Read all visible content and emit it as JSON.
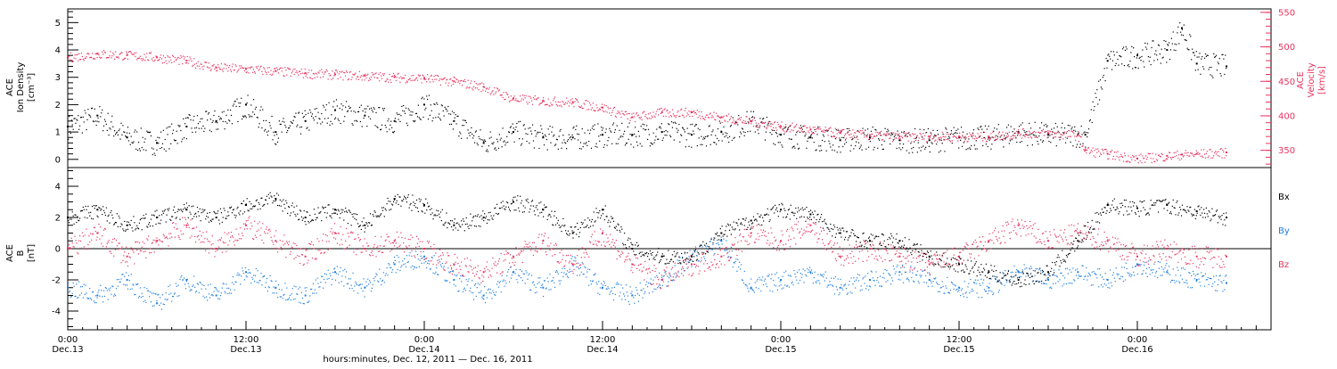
{
  "colors": {
    "black": "#000000",
    "red": "#e8335f",
    "blue": "#1f7fe0"
  },
  "x_axis": {
    "title": "hours:minutes, Dec. 12, 2011 — Dec. 16, 2011",
    "ticks": [
      {
        "time": "0:00",
        "date": "Dec.13"
      },
      {
        "time": "12:00",
        "date": "Dec.13"
      },
      {
        "time": "0:00",
        "date": "Dec.14"
      },
      {
        "time": "12:00",
        "date": "Dec.14"
      },
      {
        "time": "0:00",
        "date": "Dec.15"
      },
      {
        "time": "12:00",
        "date": "Dec.15"
      },
      {
        "time": "0:00",
        "date": "Dec.16"
      }
    ]
  },
  "chart_data": [
    {
      "type": "scatter",
      "panel": "top",
      "xlabel": "hours:minutes, Dec. 12, 2011 — Dec. 16, 2011",
      "xlim_hours": [
        0,
        81
      ],
      "left_axis": {
        "label_lines": [
          "ACE",
          "Ion Density",
          "[cm⁻³]"
        ],
        "ylim": [
          -0.3,
          5.5
        ],
        "ticks": [
          "0",
          "1",
          "2",
          "3",
          "4",
          "5"
        ]
      },
      "right_axis": {
        "label_lines": [
          "ACE",
          "Velocity",
          "[km/s]"
        ],
        "ylim": [
          325,
          555
        ],
        "ticks": [
          "350",
          "400",
          "450",
          "500",
          "550"
        ]
      },
      "series": [
        {
          "name": "",
          "color": "#000000",
          "axis": "left",
          "x_hours": [
            0,
            2,
            4,
            6,
            8,
            10,
            12,
            14,
            16,
            18,
            20,
            22,
            24,
            26,
            28,
            30,
            32,
            34,
            36,
            38,
            40,
            42,
            44,
            46,
            48,
            50,
            52,
            54,
            56,
            58,
            60,
            62,
            64,
            66,
            68,
            68.5,
            70,
            72,
            74,
            75,
            76,
            78
          ],
          "values": [
            1.2,
            1.6,
            0.8,
            0.6,
            1.2,
            1.4,
            2.0,
            1.0,
            1.4,
            1.8,
            1.6,
            1.4,
            2.0,
            1.4,
            0.6,
            1.0,
            0.8,
            0.8,
            0.9,
            0.9,
            1.0,
            0.9,
            1.0,
            1.4,
            0.9,
            0.8,
            0.7,
            0.8,
            0.7,
            0.7,
            0.8,
            0.8,
            1.0,
            0.9,
            0.9,
            0.9,
            3.6,
            3.8,
            4.0,
            4.8,
            3.5,
            3.4
          ]
        },
        {
          "name": "",
          "color": "#e8335f",
          "axis": "right",
          "x_hours": [
            0,
            2,
            4,
            6,
            8,
            10,
            12,
            14,
            16,
            18,
            20,
            22,
            24,
            26,
            28,
            30,
            32,
            34,
            36,
            38,
            40,
            42,
            44,
            46,
            48,
            50,
            52,
            54,
            56,
            58,
            60,
            62,
            64,
            66,
            68,
            68.5,
            70,
            72,
            74,
            75,
            76,
            78
          ],
          "values": [
            485,
            490,
            488,
            485,
            480,
            470,
            468,
            465,
            462,
            460,
            458,
            456,
            455,
            450,
            442,
            425,
            422,
            420,
            412,
            398,
            405,
            405,
            398,
            392,
            385,
            380,
            375,
            372,
            370,
            370,
            370,
            370,
            375,
            375,
            372,
            350,
            345,
            338,
            342,
            344,
            345,
            347
          ]
        }
      ]
    },
    {
      "type": "scatter",
      "panel": "bottom",
      "xlabel": "hours:minutes, Dec. 12, 2011 — Dec. 16, 2011",
      "xlim_hours": [
        0,
        81
      ],
      "left_axis": {
        "label_lines": [
          "ACE",
          "B",
          "[nT]"
        ],
        "ylim": [
          -5.2,
          5.2
        ],
        "ticks": [
          "-4",
          "-2",
          "0",
          "2",
          "4"
        ]
      },
      "legend": [
        "Bx",
        "By",
        "Bz"
      ],
      "series": [
        {
          "name": "Bx",
          "color": "#000000",
          "x_hours": [
            0,
            2,
            4,
            6,
            8,
            10,
            12,
            14,
            16,
            18,
            20,
            22,
            24,
            26,
            28,
            30,
            32,
            34,
            36,
            38,
            40,
            42,
            44,
            46,
            48,
            50,
            52,
            54,
            56,
            58,
            60,
            62,
            64,
            66,
            68,
            70,
            72,
            74,
            76,
            78
          ],
          "values": [
            2.0,
            2.5,
            1.5,
            2.0,
            2.5,
            2.0,
            2.8,
            3.2,
            2.0,
            2.5,
            1.5,
            3.2,
            2.8,
            1.5,
            2.0,
            3.0,
            2.5,
            1.0,
            2.5,
            0.0,
            -0.5,
            -0.5,
            1.0,
            1.8,
            2.5,
            2.2,
            1.0,
            0.5,
            0.5,
            -0.5,
            -1.0,
            -1.5,
            -2.0,
            -1.5,
            0.5,
            2.8,
            2.6,
            2.8,
            2.4,
            2.0
          ]
        },
        {
          "name": "By",
          "color": "#1f7fe0",
          "x_hours": [
            0,
            2,
            4,
            6,
            8,
            10,
            12,
            14,
            16,
            18,
            20,
            22,
            24,
            26,
            28,
            30,
            32,
            34,
            36,
            38,
            40,
            42,
            44,
            46,
            48,
            50,
            52,
            54,
            56,
            58,
            60,
            62,
            64,
            66,
            68,
            70,
            72,
            74,
            76,
            78
          ],
          "values": [
            -2.5,
            -3.0,
            -2.0,
            -3.5,
            -2.0,
            -3.0,
            -1.5,
            -2.5,
            -3.0,
            -1.5,
            -2.5,
            -1.0,
            -0.5,
            -2.0,
            -3.0,
            -1.5,
            -2.5,
            -1.0,
            -2.5,
            -3.0,
            -2.0,
            -0.5,
            0.5,
            -2.5,
            -2.0,
            -1.5,
            -2.5,
            -2.0,
            -1.5,
            -2.0,
            -2.5,
            -2.5,
            -1.5,
            -2.0,
            -1.5,
            -2.0,
            -1.0,
            -1.5,
            -2.0,
            -2.2
          ]
        },
        {
          "name": "Bz",
          "color": "#e8335f",
          "x_hours": [
            0,
            2,
            4,
            6,
            8,
            10,
            12,
            14,
            16,
            18,
            20,
            22,
            24,
            26,
            28,
            30,
            32,
            34,
            36,
            38,
            40,
            42,
            44,
            46,
            48,
            50,
            52,
            54,
            56,
            58,
            60,
            62,
            64,
            66,
            68,
            70,
            72,
            74,
            76,
            78
          ],
          "values": [
            0.0,
            1.0,
            -0.5,
            0.5,
            1.5,
            0.0,
            1.5,
            0.5,
            -0.5,
            1.0,
            0.0,
            0.5,
            0.0,
            -1.0,
            -1.5,
            -0.5,
            0.5,
            -1.0,
            1.0,
            -1.0,
            -2.0,
            -1.0,
            -0.5,
            1.0,
            0.5,
            1.5,
            -0.5,
            0.0,
            -0.5,
            -1.0,
            -0.5,
            0.5,
            1.5,
            0.5,
            1.0,
            0.5,
            -0.5,
            0.0,
            -0.5,
            -0.5
          ]
        }
      ]
    }
  ]
}
